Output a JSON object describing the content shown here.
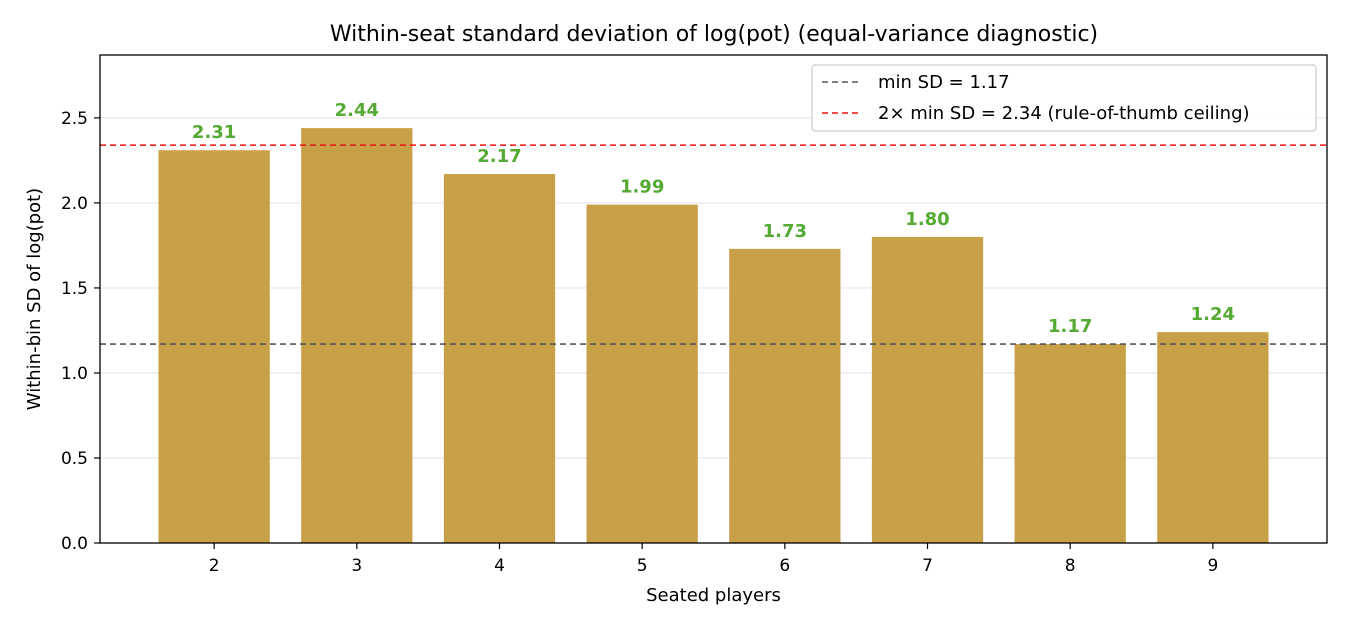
{
  "chart_data": {
    "type": "bar",
    "title": "Within-seat standard deviation of log(pot) (equal-variance diagnostic)",
    "xlabel": "Seated players",
    "ylabel": "Within-bin SD of log(pot)",
    "categories": [
      "2",
      "3",
      "4",
      "5",
      "6",
      "7",
      "8",
      "9"
    ],
    "values": [
      2.31,
      2.44,
      2.17,
      1.99,
      1.73,
      1.8,
      1.17,
      1.24
    ],
    "value_labels": [
      "2.31",
      "2.44",
      "2.17",
      "1.99",
      "1.73",
      "1.80",
      "1.17",
      "1.24"
    ],
    "ylim": [
      0,
      2.87
    ],
    "yticks": [
      0.0,
      0.5,
      1.0,
      1.5,
      2.0,
      2.5
    ],
    "ytick_labels": [
      "0.0",
      "0.5",
      "1.0",
      "1.5",
      "2.0",
      "2.5"
    ],
    "grid": "horizontal",
    "legend_position": "top-right",
    "reference_lines": [
      {
        "label": "min SD = 1.17",
        "value": 1.17,
        "color": "#555555"
      },
      {
        "label": "2× min SD = 2.34 (rule-of-thumb ceiling)",
        "value": 2.34,
        "color": "#ee1111"
      }
    ],
    "colors": {
      "bar": "#c8a048",
      "value_label": "#55aa33",
      "grid": "#e6e6e6",
      "axis": "#000000"
    }
  }
}
